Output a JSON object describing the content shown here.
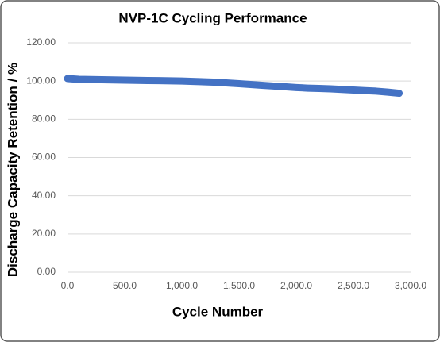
{
  "chart_data": {
    "type": "line",
    "title": "NVP-1C Cycling Performance",
    "x_label": "Cycle Number",
    "y_label": "Discharge Capacity Retention / %",
    "x": [
      0,
      100,
      200,
      300,
      400,
      500,
      600,
      700,
      800,
      900,
      1000,
      1100,
      1200,
      1300,
      1400,
      1500,
      1600,
      1700,
      1800,
      1900,
      2000,
      2100,
      2200,
      2300,
      2400,
      2500,
      2600,
      2700,
      2800,
      2900
    ],
    "series": [
      {
        "name": "NVP-1C",
        "color": "#4472c4",
        "values": [
          101.3,
          100.9,
          100.8,
          100.7,
          100.6,
          100.5,
          100.4,
          100.3,
          100.2,
          100.1,
          100.0,
          99.8,
          99.6,
          99.4,
          99.0,
          98.6,
          98.2,
          97.8,
          97.4,
          97.0,
          96.6,
          96.3,
          96.1,
          95.9,
          95.6,
          95.3,
          95.0,
          94.7,
          94.2,
          93.6
        ]
      }
    ],
    "xlim": [
      0,
      3000
    ],
    "xticks": [
      {
        "value": 0,
        "label": "0.0"
      },
      {
        "value": 500,
        "label": "500.0"
      },
      {
        "value": 1000,
        "label": "1,000.0"
      },
      {
        "value": 1500,
        "label": "1,500.0"
      },
      {
        "value": 2000,
        "label": "2,000.0"
      },
      {
        "value": 2500,
        "label": "2,500.0"
      },
      {
        "value": 3000,
        "label": "3,000.0"
      }
    ],
    "ylim": [
      0,
      120
    ],
    "yticks": [
      {
        "value": 0,
        "label": "0.00"
      },
      {
        "value": 20,
        "label": "20.00"
      },
      {
        "value": 40,
        "label": "40.00"
      },
      {
        "value": 60,
        "label": "60.00"
      },
      {
        "value": 80,
        "label": "80.00"
      },
      {
        "value": 100,
        "label": "100.00"
      },
      {
        "value": 120,
        "label": "120.00"
      }
    ],
    "grid": true
  }
}
